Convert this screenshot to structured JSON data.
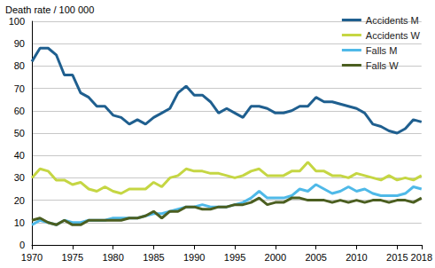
{
  "chart_data": {
    "type": "line",
    "y_label": "Death rate / 100 000",
    "x": [
      1970,
      1971,
      1972,
      1973,
      1974,
      1975,
      1976,
      1977,
      1978,
      1979,
      1980,
      1981,
      1982,
      1983,
      1984,
      1985,
      1986,
      1987,
      1988,
      1989,
      1990,
      1991,
      1992,
      1993,
      1994,
      1995,
      1996,
      1997,
      1998,
      1999,
      2000,
      2001,
      2002,
      2003,
      2004,
      2005,
      2006,
      2007,
      2008,
      2009,
      2010,
      2011,
      2012,
      2013,
      2014,
      2015,
      2016,
      2017,
      2018
    ],
    "series": [
      {
        "name": "Accidents M",
        "color": "#1f5f8f",
        "values": [
          82,
          88,
          88,
          85,
          76,
          76,
          68,
          66,
          62,
          62,
          58,
          57,
          54,
          56,
          54,
          57,
          59,
          61,
          68,
          71,
          67,
          67,
          64,
          59,
          61,
          59,
          57,
          62,
          62,
          61,
          59,
          59,
          60,
          62,
          62,
          66,
          64,
          64,
          63,
          62,
          61,
          59,
          54,
          53,
          51,
          50,
          52,
          56,
          55
        ]
      },
      {
        "name": "Accidents W",
        "color": "#c5d643",
        "values": [
          30,
          34,
          33,
          29,
          29,
          27,
          28,
          25,
          24,
          26,
          24,
          23,
          25,
          25,
          25,
          28,
          26,
          30,
          31,
          34,
          33,
          33,
          32,
          32,
          31,
          30,
          31,
          33,
          34,
          31,
          31,
          31,
          33,
          33,
          37,
          33,
          33,
          31,
          31,
          30,
          32,
          31,
          30,
          29,
          31,
          29,
          30,
          29,
          31
        ]
      },
      {
        "name": "Falls M",
        "color": "#4fb9e8",
        "values": [
          9,
          11,
          10,
          9,
          11,
          10,
          10,
          11,
          11,
          11,
          12,
          12,
          12,
          12,
          13,
          14,
          14,
          15,
          16,
          17,
          17,
          18,
          17,
          17,
          17,
          18,
          19,
          21,
          24,
          21,
          21,
          21,
          22,
          25,
          24,
          27,
          25,
          23,
          24,
          26,
          24,
          25,
          23,
          22,
          22,
          22,
          23,
          26,
          25
        ]
      },
      {
        "name": "Falls W",
        "color": "#4b5e20",
        "values": [
          11,
          12,
          10,
          9,
          11,
          9,
          9,
          11,
          11,
          11,
          11,
          11,
          12,
          12,
          13,
          15,
          12,
          15,
          15,
          17,
          17,
          16,
          16,
          17,
          17,
          18,
          18,
          19,
          21,
          18,
          19,
          19,
          21,
          21,
          20,
          20,
          20,
          19,
          20,
          19,
          20,
          19,
          20,
          20,
          19,
          20,
          20,
          19,
          21
        ]
      }
    ],
    "xlim": [
      1970,
      2018
    ],
    "xticks": [
      1970,
      1975,
      1980,
      1985,
      1990,
      1995,
      2000,
      2005,
      2010,
      2015,
      2018
    ],
    "ylim": [
      0,
      100
    ],
    "yticks": [
      0,
      10,
      20,
      30,
      40,
      50,
      60,
      70,
      80,
      90,
      100
    ],
    "grid": true,
    "legend": "top-right"
  }
}
